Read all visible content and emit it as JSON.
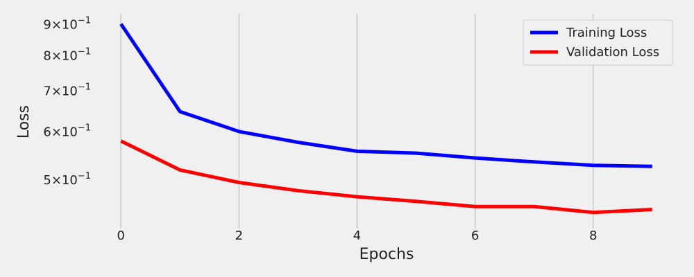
{
  "chart_data": {
    "type": "line",
    "xlabel": "Epochs",
    "ylabel": "Loss",
    "xscale": "linear",
    "yscale": "log",
    "x": [
      0,
      1,
      2,
      3,
      4,
      5,
      6,
      7,
      8,
      9
    ],
    "xticks": [
      0,
      2,
      4,
      6,
      8
    ],
    "xtick_labels": [
      "0",
      "2",
      "4",
      "6",
      "8"
    ],
    "yticks": [
      {
        "value": 0.9,
        "mantissa": "9",
        "base": "10",
        "exponent": "−1"
      },
      {
        "value": 0.8,
        "mantissa": "8",
        "base": "10",
        "exponent": "−1"
      },
      {
        "value": 0.7,
        "mantissa": "7",
        "base": "10",
        "exponent": "−1"
      },
      {
        "value": 0.6,
        "mantissa": "6",
        "base": "10",
        "exponent": "−1"
      },
      {
        "value": 0.5,
        "mantissa": "5",
        "base": "10",
        "exponent": "−1"
      }
    ],
    "xlim": [
      -0.45,
      9.45
    ],
    "ylim": [
      0.415,
      0.935
    ],
    "grid": "vertical",
    "legend": "upper right",
    "series": [
      {
        "name": "Training Loss",
        "color": "#0000ff",
        "values": [
          0.9,
          0.646,
          0.599,
          0.575,
          0.556,
          0.552,
          0.542,
          0.534,
          0.527,
          0.525
        ]
      },
      {
        "name": "Validation Loss",
        "color": "#ff0000",
        "values": [
          0.578,
          0.518,
          0.494,
          0.479,
          0.468,
          0.46,
          0.451,
          0.451,
          0.441,
          0.446
        ]
      }
    ]
  }
}
